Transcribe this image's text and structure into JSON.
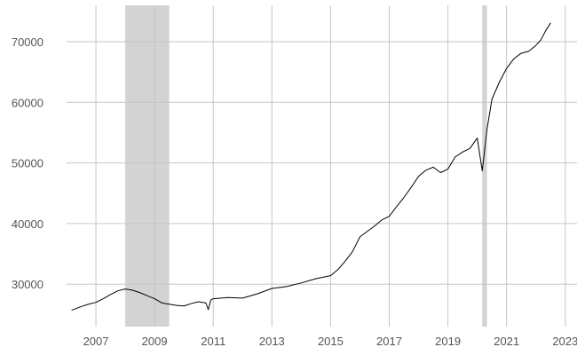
{
  "chart_data": {
    "type": "line",
    "title": "",
    "xlabel": "",
    "ylabel": "",
    "xlim": [
      2006.0,
      2023.4
    ],
    "ylim": [
      23000,
      76000
    ],
    "grid": true,
    "x_ticks": [
      2007,
      2009,
      2011,
      2013,
      2015,
      2017,
      2019,
      2021,
      2023
    ],
    "x_tick_labels": [
      "2007",
      "2009",
      "2011",
      "2013",
      "2015",
      "2017",
      "2019",
      "2021",
      "2023"
    ],
    "y_ticks": [
      30000,
      40000,
      50000,
      60000,
      70000
    ],
    "y_tick_labels": [
      "30000",
      "40000",
      "50000",
      "60000",
      "70000"
    ],
    "shaded_periods": [
      {
        "start": 2008.0,
        "end": 2009.5,
        "color": "#d3d3d3"
      },
      {
        "start": 2020.17,
        "end": 2020.33,
        "color": "#d3d3d3"
      }
    ],
    "series": [
      {
        "color": "#000000",
        "x": [
          2006.17,
          2006.5,
          2006.75,
          2007.0,
          2007.25,
          2007.5,
          2007.75,
          2008.0,
          2008.25,
          2008.5,
          2008.75,
          2009.0,
          2009.25,
          2009.5,
          2009.75,
          2010.0,
          2010.25,
          2010.5,
          2010.75,
          2010.83,
          2010.92,
          2011.0,
          2011.5,
          2012.0,
          2012.5,
          2013.0,
          2013.5,
          2014.0,
          2014.5,
          2015.0,
          2015.25,
          2015.5,
          2015.75,
          2016.0,
          2016.25,
          2016.5,
          2016.75,
          2017.0,
          2017.25,
          2017.5,
          2017.75,
          2018.0,
          2018.25,
          2018.5,
          2018.75,
          2019.0,
          2019.25,
          2019.5,
          2019.75,
          2020.0,
          2020.17,
          2020.33,
          2020.5,
          2020.75,
          2021.0,
          2021.25,
          2021.5,
          2021.75,
          2022.0,
          2022.17,
          2022.33,
          2022.5
        ],
        "y": [
          25700,
          26300,
          26700,
          27000,
          27600,
          28300,
          28900,
          29200,
          29000,
          28600,
          28100,
          27600,
          26900,
          26700,
          26500,
          26400,
          26800,
          27100,
          26900,
          25800,
          27400,
          27600,
          27800,
          27700,
          28400,
          29300,
          29600,
          30200,
          30900,
          31400,
          32400,
          33800,
          35400,
          37800,
          38700,
          39600,
          40600,
          41200,
          42800,
          44300,
          46000,
          47800,
          48800,
          49300,
          48400,
          49000,
          51000,
          51800,
          52400,
          54100,
          48700,
          55500,
          60500,
          63300,
          65600,
          67200,
          68100,
          68400,
          69400,
          70300,
          71800,
          73100
        ]
      }
    ]
  }
}
